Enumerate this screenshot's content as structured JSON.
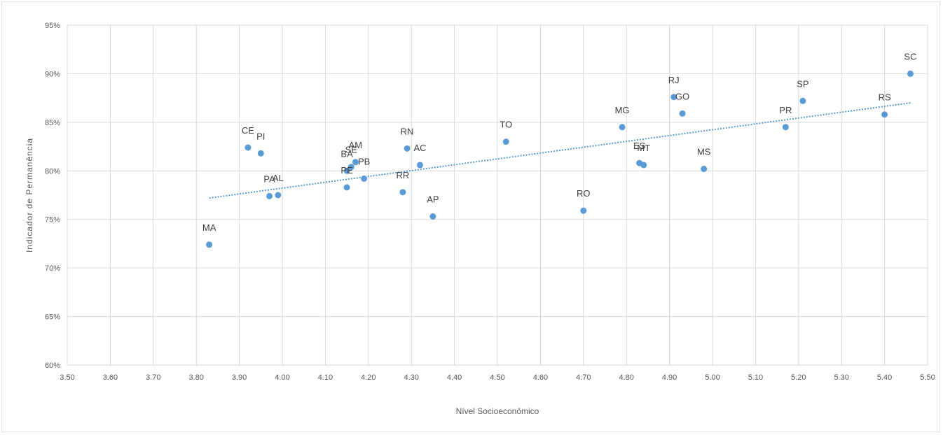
{
  "chart_data": {
    "type": "scatter",
    "title": "",
    "xlabel": "Nível Socioeconômico",
    "ylabel": "Indicador de Permanência",
    "xlim": [
      3.5,
      5.5
    ],
    "ylim": [
      60,
      95
    ],
    "x_ticks": [
      "3.50",
      "3.60",
      "3.70",
      "3.80",
      "3.90",
      "4.00",
      "4.10",
      "4.20",
      "4.30",
      "4.40",
      "4.50",
      "4.60",
      "4.70",
      "4.80",
      "4.90",
      "5.00",
      "5.10",
      "5.20",
      "5.30",
      "5.40",
      "5.50"
    ],
    "y_ticks": [
      "60%",
      "65%",
      "70%",
      "75%",
      "80%",
      "85%",
      "90%",
      "95%"
    ],
    "grid": true,
    "marker_color": "#5b9bd5",
    "trendline": {
      "type": "linear",
      "style": "dotted",
      "color": "#5b9bd5",
      "x": [
        3.83,
        5.46
      ],
      "y": [
        77.2,
        87.0
      ]
    },
    "points": [
      {
        "label": "MA",
        "x": 3.83,
        "y": 72.4
      },
      {
        "label": "CE",
        "x": 3.92,
        "y": 82.4
      },
      {
        "label": "PI",
        "x": 3.95,
        "y": 81.8
      },
      {
        "label": "PA",
        "x": 3.97,
        "y": 77.4
      },
      {
        "label": "AL",
        "x": 3.99,
        "y": 77.5
      },
      {
        "label": "BA",
        "x": 4.15,
        "y": 80.0
      },
      {
        "label": "PE",
        "x": 4.15,
        "y": 78.3
      },
      {
        "label": "SE",
        "x": 4.16,
        "y": 80.4
      },
      {
        "label": "AM",
        "x": 4.17,
        "y": 80.9
      },
      {
        "label": "PB",
        "x": 4.19,
        "y": 79.2
      },
      {
        "label": "RR",
        "x": 4.28,
        "y": 77.8
      },
      {
        "label": "RN",
        "x": 4.29,
        "y": 82.3
      },
      {
        "label": "AC",
        "x": 4.32,
        "y": 80.6
      },
      {
        "label": "AP",
        "x": 4.35,
        "y": 75.3
      },
      {
        "label": "TO",
        "x": 4.52,
        "y": 83.0
      },
      {
        "label": "RO",
        "x": 4.7,
        "y": 75.9
      },
      {
        "label": "MG",
        "x": 4.79,
        "y": 84.5
      },
      {
        "label": "ES",
        "x": 4.83,
        "y": 80.8
      },
      {
        "label": "MT",
        "x": 4.84,
        "y": 80.6
      },
      {
        "label": "RJ",
        "x": 4.91,
        "y": 87.6
      },
      {
        "label": "GO",
        "x": 4.93,
        "y": 85.9
      },
      {
        "label": "MS",
        "x": 4.98,
        "y": 80.2
      },
      {
        "label": "PR",
        "x": 5.17,
        "y": 84.5
      },
      {
        "label": "SP",
        "x": 5.21,
        "y": 87.2
      },
      {
        "label": "RS",
        "x": 5.4,
        "y": 85.8
      },
      {
        "label": "SC",
        "x": 5.46,
        "y": 90.0
      }
    ]
  }
}
